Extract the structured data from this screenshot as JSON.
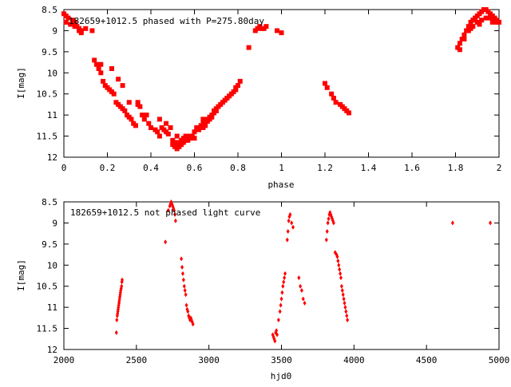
{
  "chart_data": [
    {
      "type": "scatter",
      "title": "182659+1012.5 phased with P=275.80day",
      "xlabel": "phase",
      "ylabel": "I[mag]",
      "xlim": [
        0,
        2
      ],
      "ylim": [
        8.5,
        12
      ],
      "y_inverted": true,
      "xticks": [
        "0",
        "0.2",
        "0.4",
        "0.6",
        "0.8",
        "1",
        "1.2",
        "1.4",
        "1.6",
        "1.8",
        "2"
      ],
      "yticks": [
        "8.5",
        "9",
        "9.5",
        "10",
        "10.5",
        "11",
        "11.5",
        "12"
      ],
      "marker_color": "#ff0000",
      "marker": "filled-square",
      "x": [
        0.0,
        0.01,
        0.02,
        0.04,
        0.05,
        0.06,
        0.07,
        0.08,
        0.1,
        0.13,
        0.01,
        0.03,
        0.05,
        0.07,
        0.08,
        0.14,
        0.15,
        0.16,
        0.17,
        0.18,
        0.19,
        0.2,
        0.21,
        0.22,
        0.23,
        0.24,
        0.25,
        0.26,
        0.27,
        0.28,
        0.29,
        0.3,
        0.31,
        0.32,
        0.33,
        0.34,
        0.35,
        0.36,
        0.37,
        0.39,
        0.4,
        0.42,
        0.43,
        0.44,
        0.45,
        0.46,
        0.47,
        0.48,
        0.49,
        0.5,
        0.5,
        0.51,
        0.51,
        0.52,
        0.52,
        0.53,
        0.53,
        0.54,
        0.54,
        0.55,
        0.55,
        0.56,
        0.56,
        0.57,
        0.57,
        0.58,
        0.58,
        0.59,
        0.6,
        0.61,
        0.62,
        0.63,
        0.64,
        0.64,
        0.65,
        0.65,
        0.66,
        0.66,
        0.67,
        0.67,
        0.68,
        0.68,
        0.69,
        0.69,
        0.7,
        0.7,
        0.71,
        0.72,
        0.73,
        0.74,
        0.75,
        0.76,
        0.77,
        0.78,
        0.79,
        0.8,
        0.81,
        0.85,
        0.88,
        0.89,
        0.9,
        0.91,
        0.92,
        0.93,
        0.98,
        1.0,
        1.2,
        1.21,
        1.23,
        1.24,
        1.25,
        1.27,
        1.28,
        1.29,
        1.3,
        1.31,
        1.81,
        1.82,
        1.83,
        1.84,
        1.85,
        1.86,
        1.87,
        1.88,
        1.89,
        1.9,
        1.91,
        1.92,
        1.93,
        1.94,
        1.95,
        1.96,
        1.97,
        1.98,
        1.99,
        2.0,
        1.86,
        1.88,
        1.9,
        1.92,
        1.95,
        1.97,
        1.99,
        1.82,
        1.84,
        1.87,
        1.91,
        1.94,
        1.97,
        0.47,
        0.49,
        0.52,
        0.56,
        0.6,
        0.64,
        0.7,
        0.75,
        0.79,
        0.17,
        0.22,
        0.25,
        0.27,
        0.3,
        0.34,
        0.38,
        0.44
      ],
      "y": [
        8.6,
        8.65,
        8.7,
        8.75,
        8.8,
        8.9,
        8.95,
        9.0,
        8.95,
        9.0,
        8.8,
        8.85,
        8.9,
        9.0,
        9.05,
        9.7,
        9.8,
        9.9,
        10.0,
        10.2,
        10.3,
        10.35,
        10.4,
        10.45,
        10.5,
        10.7,
        10.75,
        10.8,
        10.85,
        10.9,
        11.0,
        11.05,
        11.1,
        11.2,
        11.25,
        10.7,
        10.8,
        11.0,
        11.1,
        11.2,
        11.3,
        11.35,
        11.4,
        11.5,
        11.3,
        11.35,
        11.4,
        11.45,
        11.3,
        11.6,
        11.7,
        11.65,
        11.75,
        11.8,
        11.7,
        11.75,
        11.65,
        11.7,
        11.6,
        11.65,
        11.55,
        11.6,
        11.5,
        11.55,
        11.6,
        11.5,
        11.55,
        11.5,
        11.55,
        11.3,
        11.35,
        11.25,
        11.3,
        11.2,
        11.2,
        11.25,
        11.1,
        11.15,
        11.1,
        11.05,
        11.0,
        11.05,
        10.9,
        10.95,
        10.85,
        10.9,
        10.8,
        10.75,
        10.7,
        10.65,
        10.6,
        10.55,
        10.5,
        10.45,
        10.4,
        10.3,
        10.2,
        9.4,
        9.0,
        8.95,
        8.9,
        8.95,
        8.95,
        8.9,
        9.0,
        9.05,
        10.25,
        10.35,
        10.5,
        10.6,
        10.7,
        10.75,
        10.8,
        10.85,
        10.9,
        10.95,
        9.4,
        9.3,
        9.2,
        9.1,
        9.0,
        8.9,
        8.8,
        8.75,
        8.7,
        8.65,
        8.6,
        8.55,
        8.5,
        8.5,
        8.55,
        8.6,
        8.65,
        8.7,
        8.75,
        8.8,
        9.0,
        8.9,
        8.8,
        8.75,
        8.7,
        8.75,
        8.8,
        9.45,
        9.2,
        8.95,
        8.85,
        8.7,
        8.8,
        11.2,
        11.3,
        11.5,
        11.6,
        11.4,
        11.1,
        10.9,
        10.6,
        10.35,
        9.8,
        9.9,
        10.15,
        10.3,
        10.7,
        10.75,
        11.0,
        11.1
      ]
    },
    {
      "type": "scatter",
      "title": "182659+1012.5 not phased light curve",
      "xlabel": "hjd0",
      "ylabel": "I[mag]",
      "xlim": [
        2000,
        5000
      ],
      "ylim": [
        8.5,
        12
      ],
      "y_inverted": true,
      "xticks": [
        "2000",
        "2500",
        "3000",
        "3500",
        "4000",
        "4500",
        "5000"
      ],
      "yticks": [
        "8.5",
        "9",
        "9.5",
        "10",
        "10.5",
        "11",
        "11.5",
        "12"
      ],
      "marker_color": "#ff0000",
      "marker": "filled-diamond",
      "x": [
        2362,
        2365,
        2368,
        2370,
        2372,
        2374,
        2376,
        2378,
        2380,
        2382,
        2384,
        2386,
        2388,
        2390,
        2392,
        2395,
        2398,
        2400,
        2402,
        2700,
        2720,
        2730,
        2735,
        2740,
        2745,
        2750,
        2755,
        2760,
        2765,
        2770,
        2810,
        2815,
        2820,
        2825,
        2830,
        2835,
        2840,
        2845,
        2850,
        2855,
        2860,
        2865,
        2870,
        2875,
        2880,
        2885,
        2890,
        3440,
        3445,
        3450,
        3455,
        3460,
        3465,
        3470,
        3480,
        3490,
        3495,
        3500,
        3505,
        3510,
        3515,
        3520,
        3525,
        3540,
        3545,
        3550,
        3555,
        3560,
        3570,
        3580,
        3620,
        3630,
        3640,
        3650,
        3660,
        3810,
        3815,
        3820,
        3825,
        3830,
        3835,
        3840,
        3845,
        3850,
        3855,
        3860,
        3870,
        3880,
        3885,
        3890,
        3895,
        3900,
        3905,
        3910,
        3915,
        3920,
        3925,
        3930,
        3935,
        3940,
        3945,
        3950,
        3955,
        4680,
        4940
      ],
      "y": [
        11.6,
        11.3,
        11.2,
        11.15,
        11.1,
        11.05,
        11.0,
        10.95,
        10.9,
        10.85,
        10.8,
        10.75,
        10.7,
        10.65,
        10.6,
        10.55,
        10.5,
        10.4,
        10.35,
        9.45,
        8.7,
        8.6,
        8.55,
        8.5,
        8.55,
        8.6,
        8.65,
        8.7,
        8.8,
        8.95,
        9.85,
        10.05,
        10.2,
        10.35,
        10.5,
        10.6,
        10.7,
        10.95,
        11.05,
        11.1,
        11.2,
        11.25,
        11.3,
        11.25,
        11.3,
        11.35,
        11.4,
        11.65,
        11.7,
        11.75,
        11.8,
        11.6,
        11.55,
        11.65,
        11.3,
        11.1,
        10.95,
        10.8,
        10.65,
        10.5,
        10.4,
        10.3,
        10.2,
        9.4,
        9.2,
        8.95,
        8.85,
        8.8,
        9.0,
        9.1,
        10.3,
        10.5,
        10.6,
        10.8,
        10.9,
        9.4,
        9.2,
        9.0,
        8.9,
        8.8,
        8.75,
        8.8,
        8.85,
        8.9,
        8.95,
        9.0,
        9.7,
        9.75,
        9.8,
        9.9,
        10.0,
        10.1,
        10.2,
        10.3,
        10.5,
        10.6,
        10.7,
        10.8,
        10.9,
        11.0,
        11.1,
        11.2,
        11.3,
        9.0,
        9.0
      ]
    }
  ]
}
